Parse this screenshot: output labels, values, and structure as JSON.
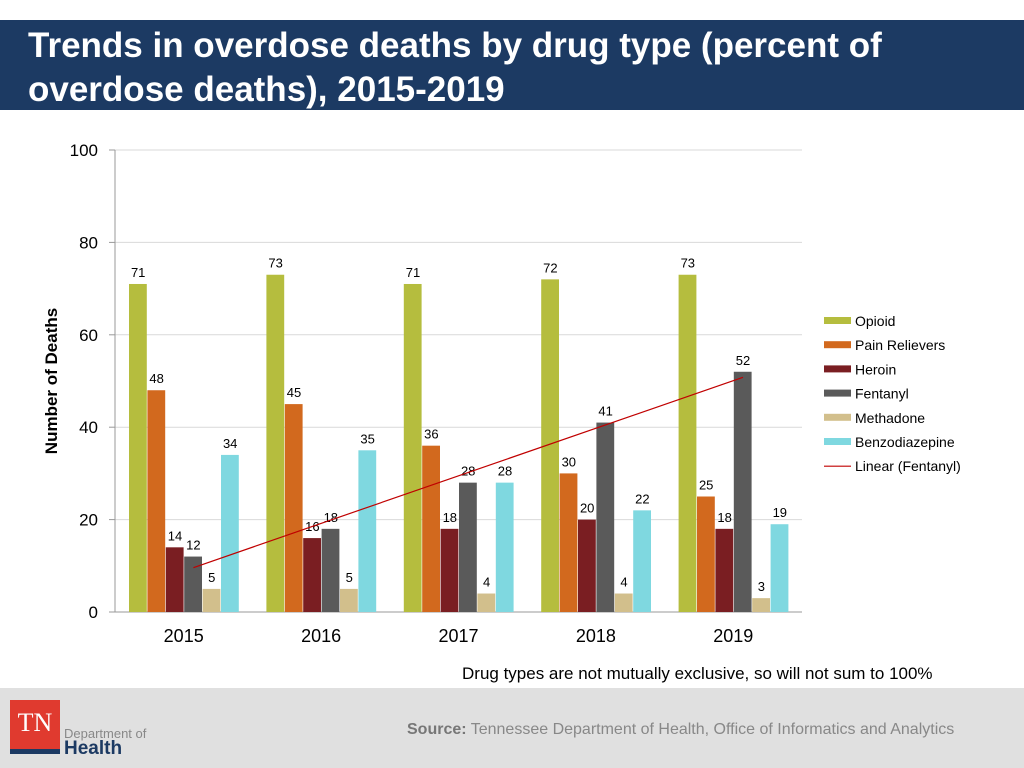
{
  "title": "Trends in overdose deaths by drug type (percent of overdose deaths), 2015-2019",
  "note": "Drug types are not mutually exclusive, so will not sum to 100%",
  "footer": {
    "logo_text": "TN",
    "dept": "Department of",
    "health": "Health",
    "source_label": "Source:",
    "source_text": "Tennessee Department of Health, Office of Informatics and Analytics"
  },
  "chart_data": {
    "type": "bar",
    "ylabel": "Number of Deaths",
    "ylim": [
      0,
      100
    ],
    "yticks": [
      0,
      20,
      40,
      60,
      80,
      100
    ],
    "grid": true,
    "legend_placement": "right",
    "categories": [
      "2015",
      "2016",
      "2017",
      "2018",
      "2019"
    ],
    "series": [
      {
        "name": "Opioid",
        "color": "#b5bd3e",
        "values": [
          71,
          73,
          71,
          72,
          73
        ]
      },
      {
        "name": "Pain Relievers",
        "color": "#d2691e",
        "values": [
          48,
          45,
          36,
          30,
          25
        ]
      },
      {
        "name": "Heroin",
        "color": "#7a1e22",
        "values": [
          14,
          16,
          18,
          20,
          18
        ]
      },
      {
        "name": "Fentanyl",
        "color": "#5a5a5a",
        "values": [
          12,
          18,
          28,
          41,
          52
        ]
      },
      {
        "name": "Methadone",
        "color": "#d2bf8c",
        "values": [
          5,
          5,
          4,
          4,
          3
        ]
      },
      {
        "name": "Benzodiazepine",
        "color": "#7fd8e0",
        "values": [
          34,
          35,
          28,
          22,
          19
        ]
      }
    ],
    "trendline": {
      "name": "Linear (Fentanyl)",
      "color": "#c00000",
      "of": "Fentanyl"
    }
  }
}
